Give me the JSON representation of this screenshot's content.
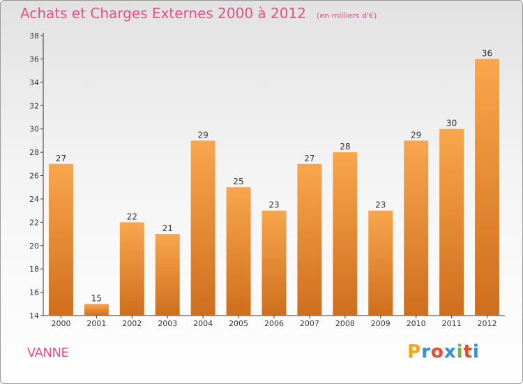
{
  "chart_data": {
    "type": "bar",
    "title": "Achats et Charges Externes 2000 à 2012",
    "subtitle": "(en milliers d'€)",
    "categories": [
      "2000",
      "2001",
      "2002",
      "2003",
      "2004",
      "2005",
      "2006",
      "2007",
      "2008",
      "2009",
      "2010",
      "2011",
      "2012"
    ],
    "values": [
      27,
      15,
      22,
      21,
      29,
      25,
      23,
      27,
      28,
      23,
      29,
      30,
      36
    ],
    "ylim": [
      14,
      38
    ],
    "yticks": [
      14,
      16,
      18,
      20,
      22,
      24,
      26,
      28,
      30,
      32,
      34,
      36,
      38
    ],
    "grid": false,
    "xlabel": "",
    "ylabel": "",
    "bar_color_top": "#f8a64e",
    "bar_color_bottom": "#cf6e1c"
  },
  "footer": {
    "city": "VANNE",
    "logo_letters": [
      "P",
      "r",
      "o",
      "x",
      "i",
      "t",
      "i"
    ],
    "logo_colors": [
      "#f2a81d",
      "#3a8fd6",
      "#e84b2c",
      "#3a8fd6",
      "#71b83a",
      "#e84b2c",
      "#3a8fd6"
    ]
  }
}
